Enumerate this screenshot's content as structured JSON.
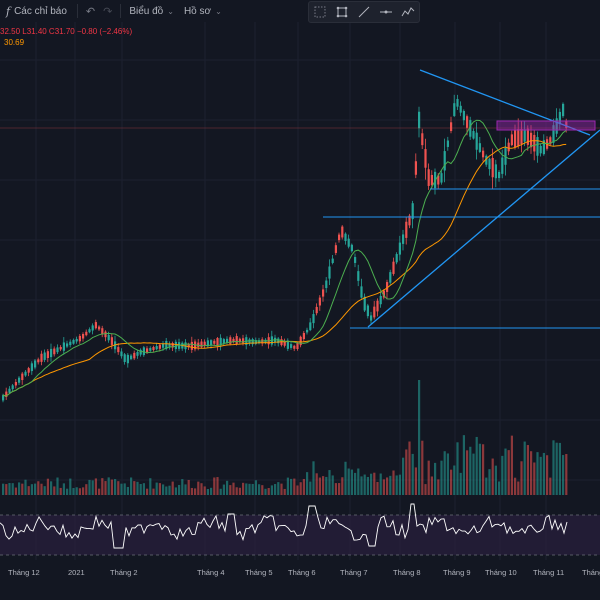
{
  "toolbar": {
    "indicators_label": "Các chỉ báo",
    "chart_label": "Biểu đồ",
    "profile_label": "Hồ sơ"
  },
  "drawing_tools": [
    "crosshair-dots-icon",
    "rectangle-icon",
    "trend-line-icon",
    "horizontal-line-icon",
    "path-icon"
  ],
  "legend": {
    "ohlc": "32.50 L31.40 C31.70 −0.80 (−2.46%)",
    "ma": "30.69"
  },
  "colors": {
    "up": "#26a69a",
    "down": "#ef5350",
    "ma_fast": "#4caf50",
    "ma_slow": "#ff9800",
    "drawing": "#2196f3",
    "rsi": "#ffffff",
    "rsi_band": "#2a1f3d",
    "zone": "#9c27b0"
  },
  "x_axis": {
    "labels": [
      "Tháng 12",
      "2021",
      "Tháng 2",
      "Tháng 4",
      "Tháng 5",
      "Tháng 6",
      "Tháng 7",
      "Tháng 8",
      "Tháng 9",
      "Tháng 10",
      "Tháng 11",
      "Tháng"
    ]
  }
}
